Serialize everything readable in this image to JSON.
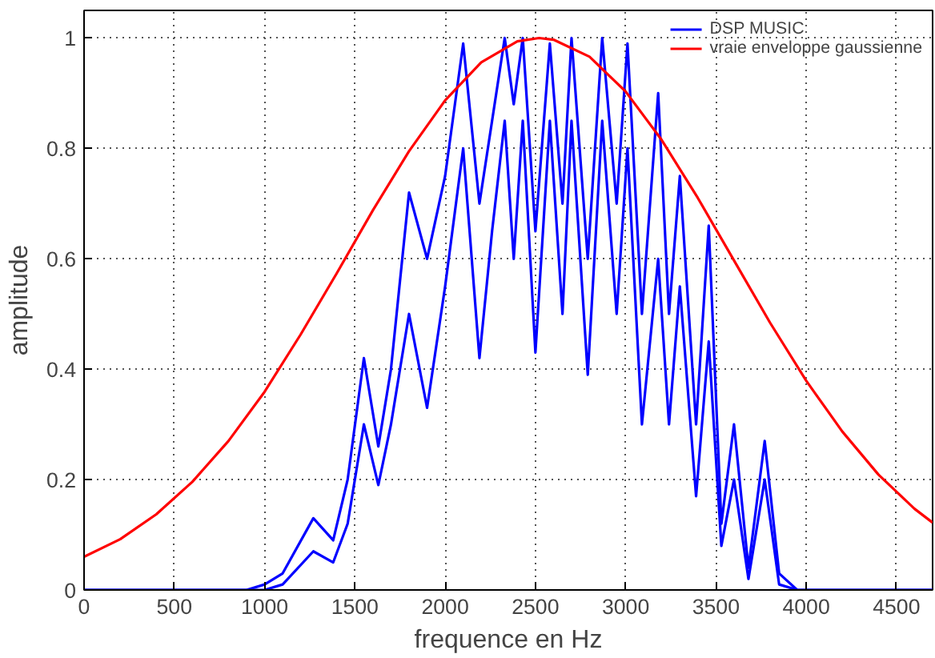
{
  "chart_data": {
    "type": "line",
    "xlabel": "frequence en Hz",
    "ylabel": "amplitude",
    "xlim": [
      0,
      4700
    ],
    "ylim": [
      0,
      1.05
    ],
    "xticks": [
      0,
      500,
      1000,
      1500,
      2000,
      2500,
      3000,
      3500,
      4000,
      4500
    ],
    "yticks": [
      0,
      0.2,
      0.4,
      0.6,
      0.8,
      1
    ],
    "grid": true,
    "legend": "top right",
    "marker": "none",
    "line_style": "solid",
    "series": [
      {
        "name": "DSP MUSIC",
        "color": "#0000ff",
        "x": [
          0,
          900,
          1000,
          1100,
          1270,
          1380,
          1460,
          1550,
          1630,
          1700,
          1800,
          1900,
          2000,
          2100,
          2190,
          2260,
          2330,
          2380,
          2430,
          2500,
          2580,
          2650,
          2700,
          2790,
          2870,
          2950,
          3010,
          3090,
          3180,
          3240,
          3300,
          3390,
          3460,
          3530,
          3600,
          3680,
          3770,
          3850,
          3950,
          4000,
          4700
        ],
        "values": [
          0,
          0,
          0.01,
          0.03,
          0.13,
          0.09,
          0.2,
          0.42,
          0.26,
          0.4,
          0.72,
          0.6,
          0.75,
          0.99,
          0.7,
          0.85,
          1.0,
          0.88,
          1.0,
          0.65,
          0.99,
          0.7,
          1.0,
          0.6,
          1.0,
          0.7,
          0.99,
          0.5,
          0.9,
          0.5,
          0.75,
          0.3,
          0.66,
          0.12,
          0.3,
          0.04,
          0.27,
          0.03,
          0,
          0,
          0
        ]
      },
      {
        "color": "#0000ff",
        "x": [
          0,
          900,
          1000,
          1100,
          1270,
          1380,
          1460,
          1550,
          1630,
          1700,
          1800,
          1900,
          2000,
          2100,
          2190,
          2260,
          2330,
          2380,
          2430,
          2500,
          2580,
          2650,
          2700,
          2790,
          2870,
          2950,
          3010,
          3090,
          3180,
          3240,
          3300,
          3390,
          3460,
          3530,
          3600,
          3680,
          3770,
          3850,
          3950,
          4000,
          4700
        ],
        "values": [
          0,
          0,
          0,
          0.01,
          0.07,
          0.05,
          0.12,
          0.3,
          0.19,
          0.3,
          0.5,
          0.33,
          0.55,
          0.8,
          0.42,
          0.65,
          0.85,
          0.6,
          0.85,
          0.43,
          0.85,
          0.5,
          0.85,
          0.39,
          0.85,
          0.5,
          0.8,
          0.3,
          0.6,
          0.3,
          0.55,
          0.17,
          0.45,
          0.08,
          0.2,
          0.02,
          0.2,
          0.01,
          0,
          0,
          0
        ]
      },
      {
        "name": "vraie enveloppe gaussienne",
        "color": "#ff0000",
        "x": [
          0,
          200,
          400,
          600,
          800,
          1000,
          1200,
          1400,
          1600,
          1800,
          2000,
          2200,
          2400,
          2520,
          2600,
          2800,
          3000,
          3200,
          3400,
          3600,
          3800,
          4000,
          4200,
          4400,
          4600,
          4700
        ],
        "values": [
          0.06,
          0.092,
          0.137,
          0.196,
          0.27,
          0.359,
          0.463,
          0.574,
          0.688,
          0.795,
          0.887,
          0.956,
          0.994,
          1.0,
          0.997,
          0.966,
          0.903,
          0.815,
          0.71,
          0.597,
          0.484,
          0.379,
          0.287,
          0.209,
          0.147,
          0.122
        ]
      }
    ]
  }
}
